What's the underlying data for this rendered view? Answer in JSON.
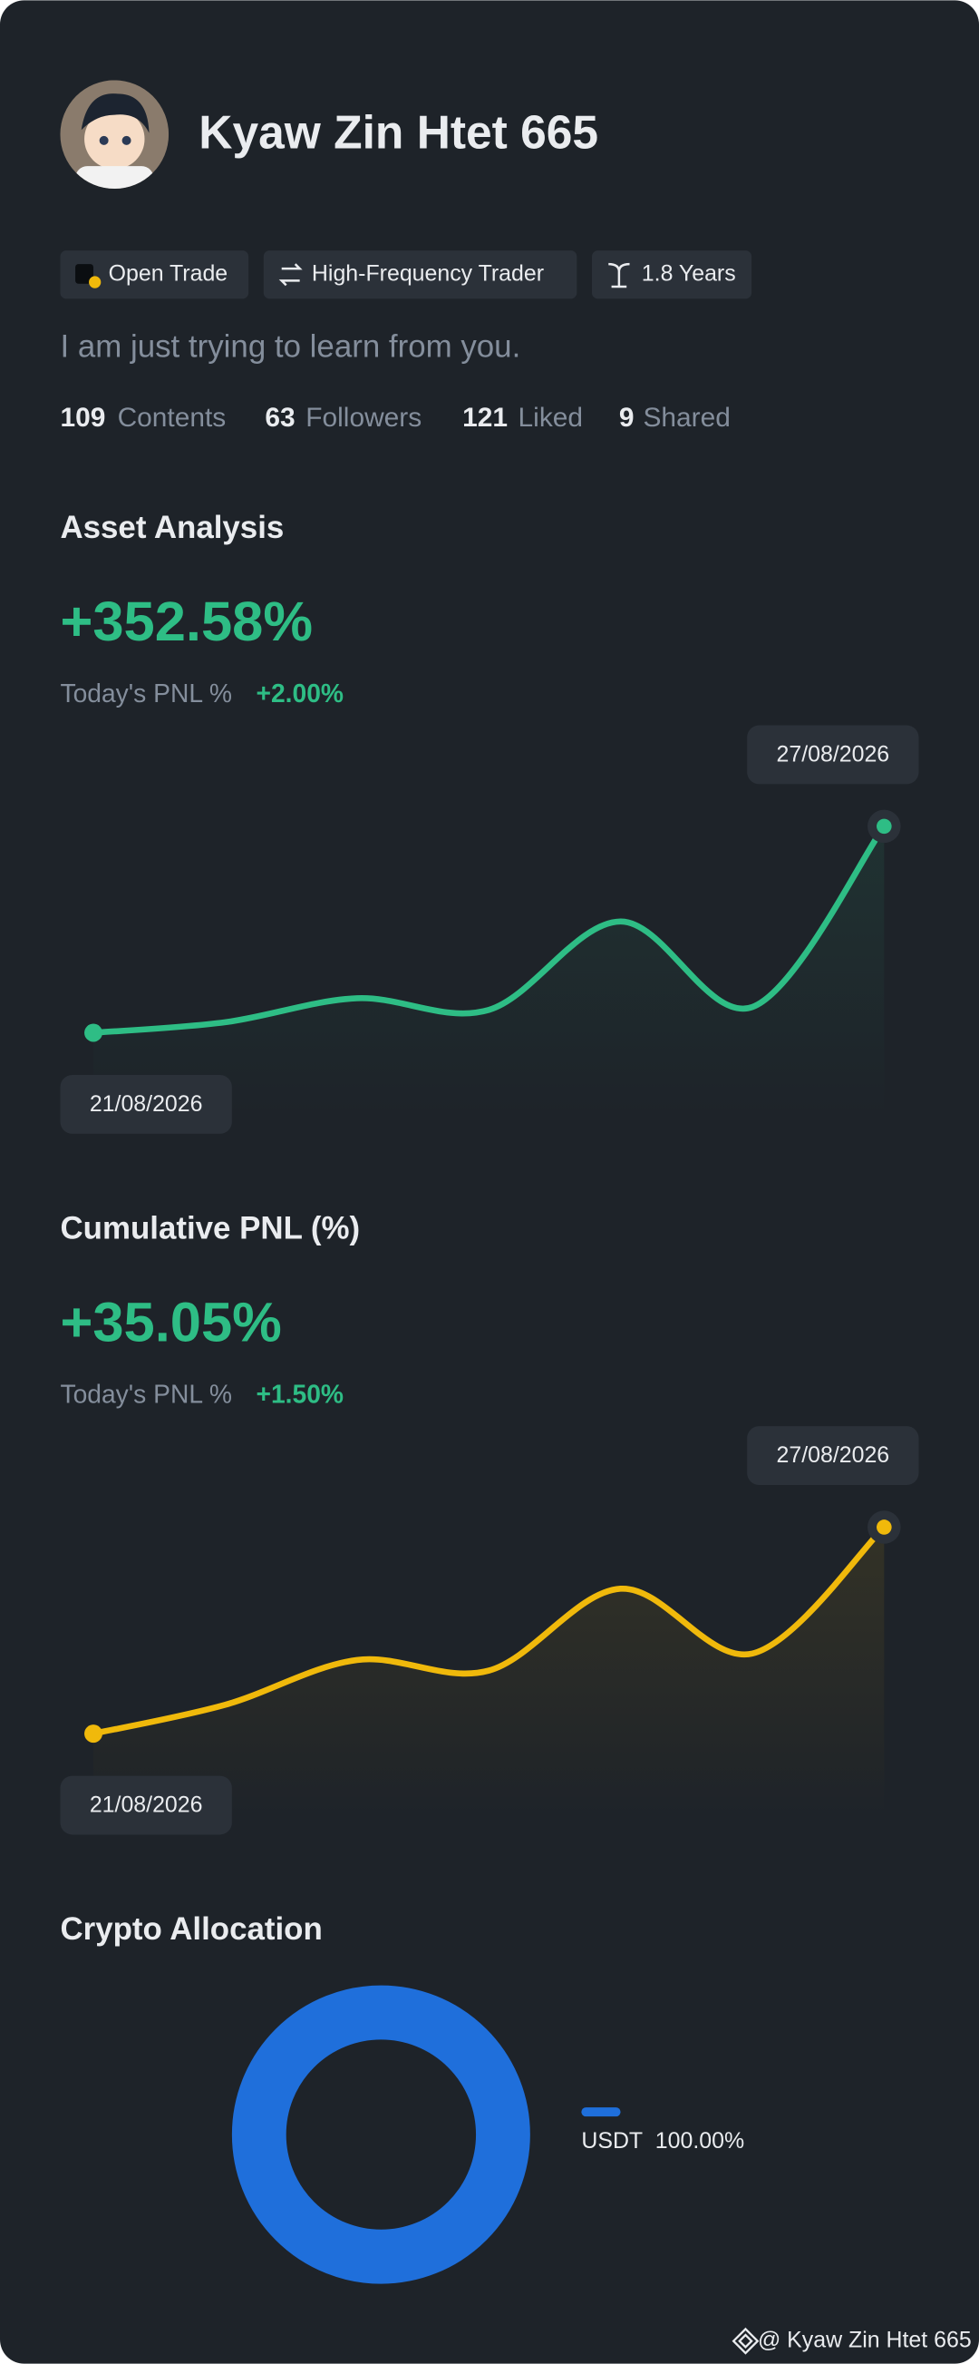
{
  "profile": {
    "name": "Kyaw Zin Htet 665",
    "tags": [
      "Open Trade",
      "High-Frequency Trader",
      "1.8 Years"
    ],
    "bio": "I am just trying to learn from you.",
    "stats": [
      {
        "value": 109,
        "label": "Contents"
      },
      {
        "value": 63,
        "label": "Followers"
      },
      {
        "value": 121,
        "label": "Liked"
      },
      {
        "value": 9,
        "label": "Shared"
      }
    ]
  },
  "asset_analysis": {
    "title": "Asset Analysis",
    "total": "+352.58%",
    "today_label": "Today's PNL %",
    "today_value": "+2.00%",
    "start_date": "21/08/2026",
    "end_date": "27/08/2026",
    "values": [
      0,
      18,
      59,
      39,
      190,
      44,
      352.58
    ],
    "color": "#2ebd85"
  },
  "cumulative_pnl": {
    "title": "Cumulative PNL (%)",
    "total": "+35.05%",
    "today_label": "Today's PNL %",
    "today_value": "+1.50%",
    "start_date": "21/08/2026",
    "end_date": "27/08/2026",
    "values": [
      0,
      4.9,
      12.5,
      10.7,
      24.6,
      13.6,
      35.05
    ],
    "color": "#f0b90b"
  },
  "crypto_allocation": {
    "title": "Crypto Allocation",
    "items": [
      {
        "name": "USDT",
        "value": 100,
        "value_label": "100.00%",
        "color": "#1f6fdb"
      }
    ]
  },
  "footer": "@ Kyaw Zin Htet 665"
}
